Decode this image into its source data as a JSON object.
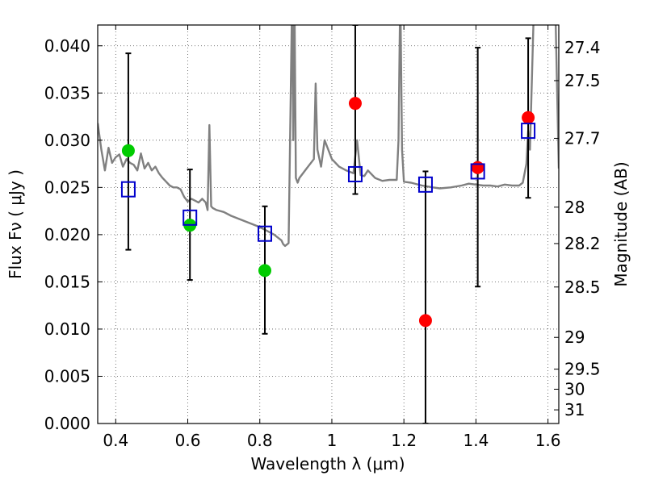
{
  "chart_data": {
    "type": "scatter",
    "title": "",
    "xlabel": "Wavelength  λ (μm)",
    "ylabel": "Flux  Fν  ( μJy )",
    "y2label": "Magnitude (AB)",
    "xlim": [
      0.35,
      1.63
    ],
    "ylim": [
      0.0,
      0.0422
    ],
    "grid": true,
    "x_ticks": [
      0.4,
      0.6,
      0.8,
      1.0,
      1.2,
      1.4,
      1.6
    ],
    "x_tick_labels": [
      "0.4",
      "0.6",
      "0.8",
      "1",
      "1.2",
      "1.4",
      "1.6"
    ],
    "y_ticks": [
      0.0,
      0.005,
      0.01,
      0.015,
      0.02,
      0.025,
      0.03,
      0.035,
      0.04
    ],
    "y_tick_labels": [
      "0.000",
      "0.005",
      "0.010",
      "0.015",
      "0.020",
      "0.025",
      "0.030",
      "0.035",
      "0.040"
    ],
    "y2_ticks": [
      {
        "label": "27.4",
        "mag": 27.4
      },
      {
        "label": "27.5",
        "mag": 27.5
      },
      {
        "label": "27.7",
        "mag": 27.7
      },
      {
        "label": "28",
        "mag": 28.0
      },
      {
        "label": "28.2",
        "mag": 28.2
      },
      {
        "label": "28.5",
        "mag": 28.5
      },
      {
        "label": "29",
        "mag": 29.0
      },
      {
        "label": "29.5",
        "mag": 29.5
      },
      {
        "label": "30",
        "mag": 30.0
      },
      {
        "label": "31",
        "mag": 31.0
      }
    ],
    "series": [
      {
        "kind": "line",
        "color": "#808080",
        "x": [
          0.35,
          0.36,
          0.37,
          0.38,
          0.39,
          0.4,
          0.41,
          0.42,
          0.43,
          0.44,
          0.45,
          0.46,
          0.47,
          0.48,
          0.49,
          0.5,
          0.51,
          0.52,
          0.53,
          0.54,
          0.55,
          0.56,
          0.57,
          0.58,
          0.59,
          0.6,
          0.61,
          0.62,
          0.63,
          0.64,
          0.65,
          0.655,
          0.66,
          0.665,
          0.67,
          0.68,
          0.7,
          0.72,
          0.74,
          0.76,
          0.78,
          0.8,
          0.82,
          0.84,
          0.85,
          0.86,
          0.865,
          0.87,
          0.88,
          0.89,
          0.893,
          0.896,
          0.9,
          0.905,
          0.91,
          0.93,
          0.95,
          0.955,
          0.96,
          0.97,
          0.98,
          0.99,
          1.0,
          1.02,
          1.04,
          1.06,
          1.07,
          1.08,
          1.09,
          1.1,
          1.12,
          1.14,
          1.16,
          1.18,
          1.185,
          1.19,
          1.195,
          1.2,
          1.22,
          1.25,
          1.28,
          1.3,
          1.33,
          1.36,
          1.38,
          1.4,
          1.42,
          1.44,
          1.46,
          1.48,
          1.5,
          1.52,
          1.53,
          1.54,
          1.545,
          1.55,
          1.56,
          1.58,
          1.6,
          1.62,
          1.63
        ],
        "y": [
          0.0318,
          0.029,
          0.0268,
          0.0292,
          0.0276,
          0.0282,
          0.0285,
          0.0272,
          0.028,
          0.0276,
          0.0274,
          0.0268,
          0.0286,
          0.027,
          0.0276,
          0.0268,
          0.0272,
          0.0265,
          0.026,
          0.0256,
          0.0252,
          0.025,
          0.025,
          0.0248,
          0.024,
          0.0235,
          0.0238,
          0.0236,
          0.0234,
          0.0238,
          0.0234,
          0.0226,
          0.0316,
          0.023,
          0.0228,
          0.0226,
          0.0224,
          0.022,
          0.0217,
          0.0214,
          0.0211,
          0.0208,
          0.0204,
          0.02,
          0.0197,
          0.0194,
          0.019,
          0.0188,
          0.0191,
          0.046,
          0.03,
          0.046,
          0.026,
          0.0255,
          0.026,
          0.027,
          0.028,
          0.036,
          0.029,
          0.0272,
          0.03,
          0.029,
          0.028,
          0.0272,
          0.0268,
          0.0265,
          0.03,
          0.0263,
          0.0262,
          0.0268,
          0.026,
          0.0257,
          0.0258,
          0.0258,
          0.03,
          0.046,
          0.029,
          0.0256,
          0.0255,
          0.0252,
          0.025,
          0.0249,
          0.025,
          0.0252,
          0.0254,
          0.0253,
          0.0252,
          0.0252,
          0.0251,
          0.0253,
          0.0252,
          0.0252,
          0.0255,
          0.0275,
          0.031,
          0.029,
          0.043,
          0.046,
          0.046,
          0.045,
          0.027
        ]
      },
      {
        "kind": "errorbar",
        "color": "#000000",
        "points": [
          {
            "x": 0.435,
            "low": 0.0184,
            "high": 0.0392
          },
          {
            "x": 0.606,
            "low": 0.0152,
            "high": 0.0269
          },
          {
            "x": 0.814,
            "low": 0.0095,
            "high": 0.023
          },
          {
            "x": 1.065,
            "low": 0.0243,
            "high": 0.0422
          },
          {
            "x": 1.26,
            "low": 0.0,
            "high": 0.0267
          },
          {
            "x": 1.405,
            "low": 0.0145,
            "high": 0.0398
          },
          {
            "x": 1.545,
            "low": 0.0239,
            "high": 0.0408
          }
        ]
      },
      {
        "kind": "scatter",
        "marker": "circle",
        "color": "#00cc00",
        "x": [
          0.435,
          0.606,
          0.814
        ],
        "y": [
          0.0289,
          0.021,
          0.0162
        ]
      },
      {
        "kind": "scatter",
        "marker": "circle",
        "color": "#ff0000",
        "x": [
          1.065,
          1.26,
          1.405,
          1.545
        ],
        "y": [
          0.0339,
          0.0109,
          0.0271,
          0.0324
        ]
      },
      {
        "kind": "scatter",
        "marker": "open-square",
        "color": "#0000cc",
        "x": [
          0.435,
          0.606,
          0.814,
          1.065,
          1.26,
          1.405,
          1.545
        ],
        "y": [
          0.0248,
          0.0218,
          0.0201,
          0.0264,
          0.0253,
          0.0267,
          0.031
        ]
      }
    ]
  }
}
